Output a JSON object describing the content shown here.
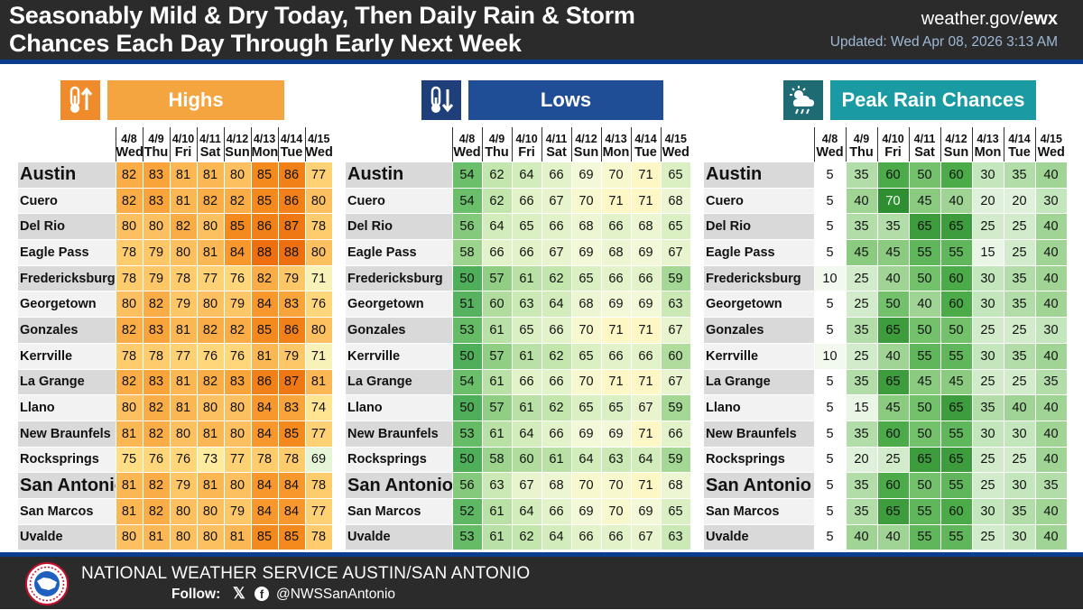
{
  "header": {
    "title_line1": "Seasonably Mild & Dry Today, Then Daily Rain & Storm",
    "title_line2": "Chances Each Day Through Early Next Week",
    "site_prefix": "weather.gov/",
    "site_suffix": "ewx",
    "updated": "Updated: Wed Apr 08, 2026 3:13 AM"
  },
  "dates": [
    "4/8",
    "4/9",
    "4/10",
    "4/11",
    "4/12",
    "4/13",
    "4/14",
    "4/15"
  ],
  "days": [
    "Wed",
    "Thu",
    "Fri",
    "Sat",
    "Sun",
    "Mon",
    "Tue",
    "Wed"
  ],
  "cities": [
    "Austin",
    "Cuero",
    "Del Rio",
    "Eagle Pass",
    "Fredericksburg",
    "Georgetown",
    "Gonzales",
    "Kerrville",
    "La Grange",
    "Llano",
    "New Braunfels",
    "Rocksprings",
    "San Antonio",
    "San Marcos",
    "Uvalde"
  ],
  "big_cities": [
    0,
    12
  ],
  "panels": [
    {
      "key": "highs",
      "title": "Highs",
      "icon": "thermometer-up-icon",
      "colors": {
        "icon_bg": "#ef8b2a",
        "title_bg": "#f5a53f",
        "title_text": "#ffffff"
      },
      "values": [
        [
          82,
          83,
          81,
          81,
          80,
          85,
          86,
          77
        ],
        [
          82,
          83,
          81,
          82,
          82,
          85,
          86,
          80
        ],
        [
          80,
          80,
          82,
          80,
          85,
          86,
          87,
          78
        ],
        [
          78,
          79,
          80,
          81,
          84,
          88,
          88,
          80
        ],
        [
          78,
          79,
          78,
          77,
          76,
          82,
          79,
          71
        ],
        [
          80,
          82,
          79,
          80,
          79,
          84,
          83,
          76
        ],
        [
          82,
          83,
          81,
          82,
          82,
          85,
          86,
          80
        ],
        [
          78,
          78,
          77,
          76,
          76,
          81,
          79,
          71
        ],
        [
          82,
          83,
          81,
          82,
          83,
          86,
          87,
          81
        ],
        [
          80,
          82,
          81,
          80,
          80,
          84,
          83,
          74
        ],
        [
          81,
          82,
          80,
          81,
          80,
          84,
          85,
          77
        ],
        [
          75,
          76,
          76,
          73,
          77,
          78,
          78,
          69
        ],
        [
          81,
          82,
          79,
          81,
          80,
          84,
          84,
          78
        ],
        [
          81,
          82,
          80,
          80,
          79,
          84,
          84,
          77
        ],
        [
          80,
          81,
          80,
          80,
          81,
          85,
          85,
          78
        ]
      ]
    },
    {
      "key": "lows",
      "title": "Lows",
      "icon": "thermometer-down-icon",
      "colors": {
        "icon_bg": "#1f3f7a",
        "title_bg": "#1f4e96",
        "title_text": "#ffffff"
      },
      "values": [
        [
          54,
          62,
          64,
          66,
          69,
          70,
          71,
          65
        ],
        [
          54,
          62,
          66,
          67,
          70,
          71,
          71,
          68
        ],
        [
          56,
          64,
          65,
          66,
          68,
          66,
          68,
          65
        ],
        [
          58,
          66,
          66,
          67,
          69,
          68,
          69,
          67
        ],
        [
          50,
          57,
          61,
          62,
          65,
          66,
          66,
          59
        ],
        [
          51,
          60,
          63,
          64,
          68,
          69,
          69,
          63
        ],
        [
          53,
          61,
          65,
          66,
          70,
          71,
          71,
          67
        ],
        [
          50,
          57,
          61,
          62,
          65,
          66,
          66,
          60
        ],
        [
          54,
          61,
          66,
          66,
          70,
          71,
          71,
          67
        ],
        [
          50,
          57,
          61,
          62,
          65,
          65,
          67,
          59
        ],
        [
          53,
          61,
          64,
          66,
          69,
          69,
          71,
          66
        ],
        [
          50,
          58,
          60,
          61,
          64,
          63,
          64,
          59
        ],
        [
          56,
          63,
          67,
          68,
          70,
          70,
          71,
          68
        ],
        [
          52,
          61,
          64,
          66,
          69,
          70,
          69,
          65
        ],
        [
          53,
          61,
          62,
          64,
          66,
          66,
          67,
          63
        ]
      ]
    },
    {
      "key": "rain",
      "title": "Peak Rain Chances",
      "icon": "rain-cloud-sun-icon",
      "colors": {
        "icon_bg": "#1f6b73",
        "title_bg": "#1a9aa3",
        "title_text": "#ffffff"
      },
      "values": [
        [
          5,
          35,
          60,
          50,
          60,
          30,
          35,
          40
        ],
        [
          5,
          40,
          70,
          45,
          40,
          20,
          20,
          30
        ],
        [
          5,
          35,
          35,
          65,
          65,
          25,
          25,
          40
        ],
        [
          5,
          45,
          45,
          55,
          55,
          15,
          25,
          40
        ],
        [
          10,
          25,
          40,
          50,
          60,
          30,
          35,
          40
        ],
        [
          5,
          25,
          50,
          40,
          60,
          30,
          35,
          40
        ],
        [
          5,
          35,
          65,
          50,
          50,
          25,
          25,
          30
        ],
        [
          10,
          25,
          40,
          55,
          55,
          30,
          35,
          40
        ],
        [
          5,
          35,
          65,
          45,
          45,
          25,
          25,
          35
        ],
        [
          5,
          15,
          45,
          50,
          65,
          35,
          40,
          40
        ],
        [
          5,
          35,
          60,
          50,
          55,
          30,
          30,
          40
        ],
        [
          5,
          20,
          25,
          65,
          65,
          25,
          25,
          40
        ],
        [
          5,
          35,
          60,
          50,
          55,
          25,
          30,
          35
        ],
        [
          5,
          35,
          65,
          55,
          60,
          30,
          35,
          40
        ],
        [
          5,
          40,
          40,
          55,
          55,
          25,
          30,
          40
        ]
      ]
    }
  ],
  "footer": {
    "office": "NATIONAL WEATHER SERVICE AUSTIN/SAN ANTONIO",
    "follow_label": "Follow:",
    "x_glyph": "𝕏",
    "fb_glyph": "f",
    "handle": "@NWSSanAntonio",
    "logo_ring_text": "NATIONAL WEATHER SERVICE",
    "logo": "nws-logo-icon"
  }
}
